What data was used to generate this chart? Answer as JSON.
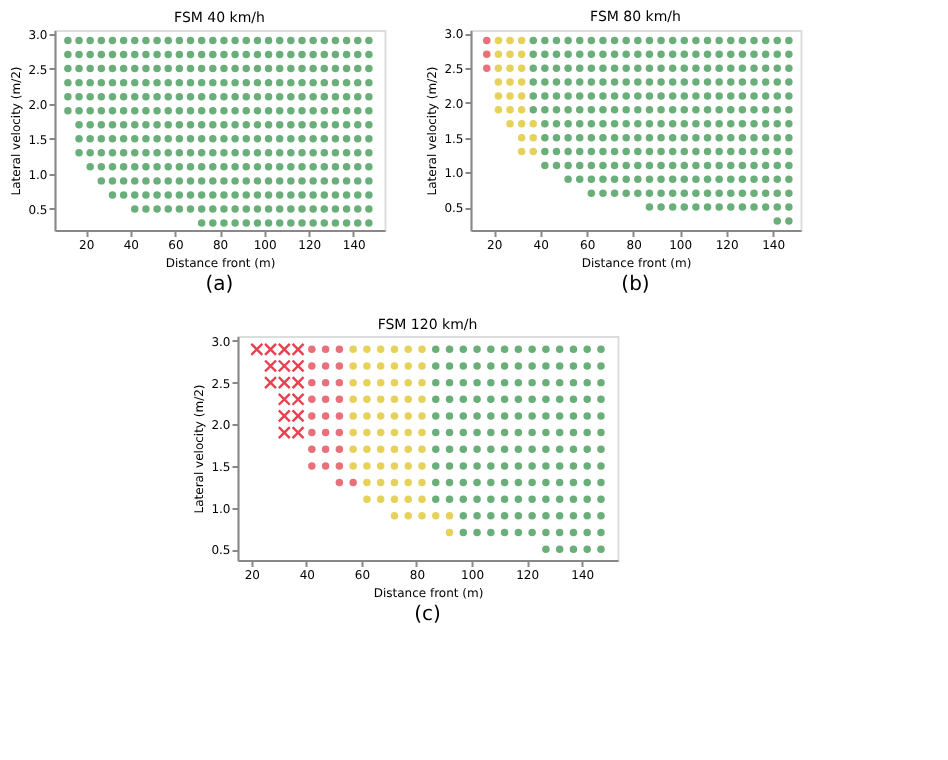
{
  "chart_data": [
    {
      "type": "scatter",
      "title": "FSM 40 km/h",
      "xlabel": "Distance front (m)",
      "ylabel": "Lateral velocity (m/2)",
      "annotations": [
        "(a)"
      ],
      "marker": "circle",
      "grid": false,
      "legend": false,
      "xlim": [
        6,
        154
      ],
      "xticks": [
        20,
        40,
        60,
        80,
        100,
        120,
        140
      ],
      "ylim": [
        0.2,
        3.05
      ],
      "yticks": [
        0.5,
        {
          "value": 1,
          "label": "1.0"
        },
        1.5,
        {
          "value": 2,
          "label": "2.0"
        },
        2.5,
        {
          "value": 3,
          "label": "3.0"
        }
      ],
      "series": [
        {
          "color": "#6aaf7a",
          "x": [
            12,
            17,
            22,
            27,
            32,
            37,
            42,
            47,
            52,
            57,
            62,
            67,
            72,
            77,
            82,
            87,
            92,
            97,
            102,
            107,
            112,
            117,
            122,
            127,
            132,
            137,
            142,
            147
          ],
          "values": [
            2.9,
            2.9,
            2.9,
            2.9,
            2.9,
            2.9,
            2.9,
            2.9,
            2.9,
            2.9,
            2.9,
            2.9,
            2.9,
            2.9,
            2.9,
            2.9,
            2.9,
            2.9,
            2.9,
            2.9,
            2.9,
            2.9,
            2.9,
            2.9,
            2.9,
            2.9,
            2.9,
            2.9
          ]
        },
        {
          "color": "#6aaf7a",
          "x": [
            12,
            17,
            22,
            27,
            32,
            37,
            42,
            47,
            52,
            57,
            62,
            67,
            72,
            77,
            82,
            87,
            92,
            97,
            102,
            107,
            112,
            117,
            122,
            127,
            132,
            137,
            142,
            147
          ],
          "values": [
            2.7,
            2.7,
            2.7,
            2.7,
            2.7,
            2.7,
            2.7,
            2.7,
            2.7,
            2.7,
            2.7,
            2.7,
            2.7,
            2.7,
            2.7,
            2.7,
            2.7,
            2.7,
            2.7,
            2.7,
            2.7,
            2.7,
            2.7,
            2.7,
            2.7,
            2.7,
            2.7,
            2.7
          ]
        },
        {
          "color": "#6aaf7a",
          "x": [
            12,
            17,
            22,
            27,
            32,
            37,
            42,
            47,
            52,
            57,
            62,
            67,
            72,
            77,
            82,
            87,
            92,
            97,
            102,
            107,
            112,
            117,
            122,
            127,
            132,
            137,
            142,
            147
          ],
          "values": [
            2.5,
            2.5,
            2.5,
            2.5,
            2.5,
            2.5,
            2.5,
            2.5,
            2.5,
            2.5,
            2.5,
            2.5,
            2.5,
            2.5,
            2.5,
            2.5,
            2.5,
            2.5,
            2.5,
            2.5,
            2.5,
            2.5,
            2.5,
            2.5,
            2.5,
            2.5,
            2.5,
            2.5
          ]
        },
        {
          "color": "#6aaf7a",
          "x": [
            12,
            17,
            22,
            27,
            32,
            37,
            42,
            47,
            52,
            57,
            62,
            67,
            72,
            77,
            82,
            87,
            92,
            97,
            102,
            107,
            112,
            117,
            122,
            127,
            132,
            137,
            142,
            147
          ],
          "values": [
            2.3,
            2.3,
            2.3,
            2.3,
            2.3,
            2.3,
            2.3,
            2.3,
            2.3,
            2.3,
            2.3,
            2.3,
            2.3,
            2.3,
            2.3,
            2.3,
            2.3,
            2.3,
            2.3,
            2.3,
            2.3,
            2.3,
            2.3,
            2.3,
            2.3,
            2.3,
            2.3,
            2.3
          ]
        },
        {
          "color": "#6aaf7a",
          "x": [
            12,
            17,
            22,
            27,
            32,
            37,
            42,
            47,
            52,
            57,
            62,
            67,
            72,
            77,
            82,
            87,
            92,
            97,
            102,
            107,
            112,
            117,
            122,
            127,
            132,
            137,
            142,
            147
          ],
          "values": [
            2.1,
            2.1,
            2.1,
            2.1,
            2.1,
            2.1,
            2.1,
            2.1,
            2.1,
            2.1,
            2.1,
            2.1,
            2.1,
            2.1,
            2.1,
            2.1,
            2.1,
            2.1,
            2.1,
            2.1,
            2.1,
            2.1,
            2.1,
            2.1,
            2.1,
            2.1,
            2.1,
            2.1
          ]
        },
        {
          "color": "#6aaf7a",
          "x": [
            12,
            17,
            22,
            27,
            32,
            37,
            42,
            47,
            52,
            57,
            62,
            67,
            72,
            77,
            82,
            87,
            92,
            97,
            102,
            107,
            112,
            117,
            122,
            127,
            132,
            137,
            142,
            147
          ],
          "values": [
            1.9,
            1.9,
            1.9,
            1.9,
            1.9,
            1.9,
            1.9,
            1.9,
            1.9,
            1.9,
            1.9,
            1.9,
            1.9,
            1.9,
            1.9,
            1.9,
            1.9,
            1.9,
            1.9,
            1.9,
            1.9,
            1.9,
            1.9,
            1.9,
            1.9,
            1.9,
            1.9,
            1.9
          ]
        },
        {
          "color": "#6aaf7a",
          "x": [
            17,
            22,
            27,
            32,
            37,
            42,
            47,
            52,
            57,
            62,
            67,
            72,
            77,
            82,
            87,
            92,
            97,
            102,
            107,
            112,
            117,
            122,
            127,
            132,
            137,
            142,
            147
          ],
          "values": [
            1.7,
            1.7,
            1.7,
            1.7,
            1.7,
            1.7,
            1.7,
            1.7,
            1.7,
            1.7,
            1.7,
            1.7,
            1.7,
            1.7,
            1.7,
            1.7,
            1.7,
            1.7,
            1.7,
            1.7,
            1.7,
            1.7,
            1.7,
            1.7,
            1.7,
            1.7,
            1.7
          ]
        },
        {
          "color": "#6aaf7a",
          "x": [
            17,
            22,
            27,
            32,
            37,
            42,
            47,
            52,
            57,
            62,
            67,
            72,
            77,
            82,
            87,
            92,
            97,
            102,
            107,
            112,
            117,
            122,
            127,
            132,
            137,
            142,
            147
          ],
          "values": [
            1.5,
            1.5,
            1.5,
            1.5,
            1.5,
            1.5,
            1.5,
            1.5,
            1.5,
            1.5,
            1.5,
            1.5,
            1.5,
            1.5,
            1.5,
            1.5,
            1.5,
            1.5,
            1.5,
            1.5,
            1.5,
            1.5,
            1.5,
            1.5,
            1.5,
            1.5,
            1.5
          ]
        },
        {
          "color": "#6aaf7a",
          "x": [
            17,
            22,
            27,
            32,
            37,
            42,
            47,
            52,
            57,
            62,
            67,
            72,
            77,
            82,
            87,
            92,
            97,
            102,
            107,
            112,
            117,
            122,
            127,
            132,
            137,
            142,
            147
          ],
          "values": [
            1.3,
            1.3,
            1.3,
            1.3,
            1.3,
            1.3,
            1.3,
            1.3,
            1.3,
            1.3,
            1.3,
            1.3,
            1.3,
            1.3,
            1.3,
            1.3,
            1.3,
            1.3,
            1.3,
            1.3,
            1.3,
            1.3,
            1.3,
            1.3,
            1.3,
            1.3,
            1.3
          ]
        },
        {
          "color": "#6aaf7a",
          "x": [
            22,
            27,
            32,
            37,
            42,
            47,
            52,
            57,
            62,
            67,
            72,
            77,
            82,
            87,
            92,
            97,
            102,
            107,
            112,
            117,
            122,
            127,
            132,
            137,
            142,
            147
          ],
          "values": [
            1.1,
            1.1,
            1.1,
            1.1,
            1.1,
            1.1,
            1.1,
            1.1,
            1.1,
            1.1,
            1.1,
            1.1,
            1.1,
            1.1,
            1.1,
            1.1,
            1.1,
            1.1,
            1.1,
            1.1,
            1.1,
            1.1,
            1.1,
            1.1,
            1.1,
            1.1
          ]
        },
        {
          "color": "#6aaf7a",
          "x": [
            27,
            32,
            37,
            42,
            47,
            52,
            57,
            62,
            67,
            72,
            77,
            82,
            87,
            92,
            97,
            102,
            107,
            112,
            117,
            122,
            127,
            132,
            137,
            142,
            147
          ],
          "values": [
            0.9,
            0.9,
            0.9,
            0.9,
            0.9,
            0.9,
            0.9,
            0.9,
            0.9,
            0.9,
            0.9,
            0.9,
            0.9,
            0.9,
            0.9,
            0.9,
            0.9,
            0.9,
            0.9,
            0.9,
            0.9,
            0.9,
            0.9,
            0.9,
            0.9
          ]
        },
        {
          "color": "#6aaf7a",
          "x": [
            32,
            37,
            42,
            47,
            52,
            57,
            62,
            67,
            72,
            77,
            82,
            87,
            92,
            97,
            102,
            107,
            112,
            117,
            122,
            127,
            132,
            137,
            142,
            147
          ],
          "values": [
            0.7,
            0.7,
            0.7,
            0.7,
            0.7,
            0.7,
            0.7,
            0.7,
            0.7,
            0.7,
            0.7,
            0.7,
            0.7,
            0.7,
            0.7,
            0.7,
            0.7,
            0.7,
            0.7,
            0.7,
            0.7,
            0.7,
            0.7,
            0.7
          ]
        },
        {
          "color": "#6aaf7a",
          "x": [
            42,
            47,
            52,
            57,
            62,
            67,
            72,
            77,
            82,
            87,
            92,
            97,
            102,
            107,
            112,
            117,
            122,
            127,
            132,
            137,
            142,
            147
          ],
          "values": [
            0.5,
            0.5,
            0.5,
            0.5,
            0.5,
            0.5,
            0.5,
            0.5,
            0.5,
            0.5,
            0.5,
            0.5,
            0.5,
            0.5,
            0.5,
            0.5,
            0.5,
            0.5,
            0.5,
            0.5,
            0.5,
            0.5
          ]
        },
        {
          "color": "#6aaf7a",
          "x": [
            72,
            77,
            82,
            87,
            92,
            97,
            102,
            107,
            112,
            117,
            122,
            127,
            132,
            137,
            142,
            147
          ],
          "values": [
            0.3,
            0.3,
            0.3,
            0.3,
            0.3,
            0.3,
            0.3,
            0.3,
            0.3,
            0.3,
            0.3,
            0.3,
            0.3,
            0.3,
            0.3,
            0.3
          ]
        }
      ]
    },
    {
      "type": "scatter",
      "title": "FSM 80 km/h",
      "xlabel": "Distance front (m)",
      "ylabel": "Lateral velocity (m/2)",
      "annotations": [
        "(b)"
      ],
      "marker": "circle",
      "grid": false,
      "legend": false,
      "xlim": [
        10,
        152
      ],
      "xticks": [
        20,
        40,
        60,
        80,
        100,
        120,
        140
      ],
      "ylim": [
        0.17,
        3.05
      ],
      "yticks": [
        0.5,
        {
          "value": 1,
          "label": "1.0"
        },
        1.5,
        {
          "value": 2,
          "label": "2.0"
        },
        2.5,
        {
          "value": 3,
          "label": "3.0"
        }
      ],
      "series": [
        {
          "color": "#e8707a",
          "x": [
            17,
            17,
            17
          ],
          "values": [
            2.9,
            2.7,
            2.5
          ]
        },
        {
          "color": "#e6d25a",
          "x": [
            22,
            27,
            32,
            22,
            27,
            32,
            22,
            27,
            32,
            22,
            27,
            32,
            22,
            27,
            32,
            22,
            27,
            32,
            27,
            32,
            37,
            32,
            37,
            32,
            37
          ],
          "values": [
            2.9,
            2.9,
            2.9,
            2.7,
            2.7,
            2.7,
            2.5,
            2.5,
            2.5,
            2.3,
            2.3,
            2.3,
            2.1,
            2.1,
            2.1,
            1.9,
            1.9,
            1.9,
            1.7,
            1.7,
            1.7,
            1.5,
            1.5,
            1.3,
            1.3
          ]
        },
        {
          "color": "#6aaf7a",
          "x": [
            37,
            42,
            47,
            52,
            57,
            62,
            67,
            72,
            77,
            82,
            87,
            92,
            97,
            102,
            107,
            112,
            117,
            122,
            127,
            132,
            137,
            142,
            147
          ],
          "values": [
            2.9,
            2.9,
            2.9,
            2.9,
            2.9,
            2.9,
            2.9,
            2.9,
            2.9,
            2.9,
            2.9,
            2.9,
            2.9,
            2.9,
            2.9,
            2.9,
            2.9,
            2.9,
            2.9,
            2.9,
            2.9,
            2.9,
            2.9
          ]
        },
        {
          "color": "#6aaf7a",
          "x": [
            37,
            42,
            47,
            52,
            57,
            62,
            67,
            72,
            77,
            82,
            87,
            92,
            97,
            102,
            107,
            112,
            117,
            122,
            127,
            132,
            137,
            142,
            147
          ],
          "values": [
            2.7,
            2.7,
            2.7,
            2.7,
            2.7,
            2.7,
            2.7,
            2.7,
            2.7,
            2.7,
            2.7,
            2.7,
            2.7,
            2.7,
            2.7,
            2.7,
            2.7,
            2.7,
            2.7,
            2.7,
            2.7,
            2.7,
            2.7
          ]
        },
        {
          "color": "#6aaf7a",
          "x": [
            37,
            42,
            47,
            52,
            57,
            62,
            67,
            72,
            77,
            82,
            87,
            92,
            97,
            102,
            107,
            112,
            117,
            122,
            127,
            132,
            137,
            142,
            147
          ],
          "values": [
            2.5,
            2.5,
            2.5,
            2.5,
            2.5,
            2.5,
            2.5,
            2.5,
            2.5,
            2.5,
            2.5,
            2.5,
            2.5,
            2.5,
            2.5,
            2.5,
            2.5,
            2.5,
            2.5,
            2.5,
            2.5,
            2.5,
            2.5
          ]
        },
        {
          "color": "#6aaf7a",
          "x": [
            37,
            42,
            47,
            52,
            57,
            62,
            67,
            72,
            77,
            82,
            87,
            92,
            97,
            102,
            107,
            112,
            117,
            122,
            127,
            132,
            137,
            142,
            147
          ],
          "values": [
            2.3,
            2.3,
            2.3,
            2.3,
            2.3,
            2.3,
            2.3,
            2.3,
            2.3,
            2.3,
            2.3,
            2.3,
            2.3,
            2.3,
            2.3,
            2.3,
            2.3,
            2.3,
            2.3,
            2.3,
            2.3,
            2.3,
            2.3
          ]
        },
        {
          "color": "#6aaf7a",
          "x": [
            37,
            42,
            47,
            52,
            57,
            62,
            67,
            72,
            77,
            82,
            87,
            92,
            97,
            102,
            107,
            112,
            117,
            122,
            127,
            132,
            137,
            142,
            147
          ],
          "values": [
            2.1,
            2.1,
            2.1,
            2.1,
            2.1,
            2.1,
            2.1,
            2.1,
            2.1,
            2.1,
            2.1,
            2.1,
            2.1,
            2.1,
            2.1,
            2.1,
            2.1,
            2.1,
            2.1,
            2.1,
            2.1,
            2.1,
            2.1
          ]
        },
        {
          "color": "#6aaf7a",
          "x": [
            37,
            42,
            47,
            52,
            57,
            62,
            67,
            72,
            77,
            82,
            87,
            92,
            97,
            102,
            107,
            112,
            117,
            122,
            127,
            132,
            137,
            142,
            147
          ],
          "values": [
            1.9,
            1.9,
            1.9,
            1.9,
            1.9,
            1.9,
            1.9,
            1.9,
            1.9,
            1.9,
            1.9,
            1.9,
            1.9,
            1.9,
            1.9,
            1.9,
            1.9,
            1.9,
            1.9,
            1.9,
            1.9,
            1.9,
            1.9
          ]
        },
        {
          "color": "#6aaf7a",
          "x": [
            42,
            47,
            52,
            57,
            62,
            67,
            72,
            77,
            82,
            87,
            92,
            97,
            102,
            107,
            112,
            117,
            122,
            127,
            132,
            137,
            142,
            147
          ],
          "values": [
            1.7,
            1.7,
            1.7,
            1.7,
            1.7,
            1.7,
            1.7,
            1.7,
            1.7,
            1.7,
            1.7,
            1.7,
            1.7,
            1.7,
            1.7,
            1.7,
            1.7,
            1.7,
            1.7,
            1.7,
            1.7,
            1.7
          ]
        },
        {
          "color": "#6aaf7a",
          "x": [
            42,
            47,
            52,
            57,
            62,
            67,
            72,
            77,
            82,
            87,
            92,
            97,
            102,
            107,
            112,
            117,
            122,
            127,
            132,
            137,
            142,
            147
          ],
          "values": [
            1.5,
            1.5,
            1.5,
            1.5,
            1.5,
            1.5,
            1.5,
            1.5,
            1.5,
            1.5,
            1.5,
            1.5,
            1.5,
            1.5,
            1.5,
            1.5,
            1.5,
            1.5,
            1.5,
            1.5,
            1.5,
            1.5
          ]
        },
        {
          "color": "#6aaf7a",
          "x": [
            42,
            47,
            52,
            57,
            62,
            67,
            72,
            77,
            82,
            87,
            92,
            97,
            102,
            107,
            112,
            117,
            122,
            127,
            132,
            137,
            142,
            147
          ],
          "values": [
            1.3,
            1.3,
            1.3,
            1.3,
            1.3,
            1.3,
            1.3,
            1.3,
            1.3,
            1.3,
            1.3,
            1.3,
            1.3,
            1.3,
            1.3,
            1.3,
            1.3,
            1.3,
            1.3,
            1.3,
            1.3,
            1.3
          ]
        },
        {
          "color": "#6aaf7a",
          "x": [
            42,
            47,
            52,
            57,
            62,
            67,
            72,
            77,
            82,
            87,
            92,
            97,
            102,
            107,
            112,
            117,
            122,
            127,
            132,
            137,
            142,
            147
          ],
          "values": [
            1.1,
            1.1,
            1.1,
            1.1,
            1.1,
            1.1,
            1.1,
            1.1,
            1.1,
            1.1,
            1.1,
            1.1,
            1.1,
            1.1,
            1.1,
            1.1,
            1.1,
            1.1,
            1.1,
            1.1,
            1.1,
            1.1
          ]
        },
        {
          "color": "#6aaf7a",
          "x": [
            52,
            57,
            62,
            67,
            72,
            77,
            82,
            87,
            92,
            97,
            102,
            107,
            112,
            117,
            122,
            127,
            132,
            137,
            142,
            147
          ],
          "values": [
            0.9,
            0.9,
            0.9,
            0.9,
            0.9,
            0.9,
            0.9,
            0.9,
            0.9,
            0.9,
            0.9,
            0.9,
            0.9,
            0.9,
            0.9,
            0.9,
            0.9,
            0.9,
            0.9,
            0.9
          ]
        },
        {
          "color": "#6aaf7a",
          "x": [
            62,
            67,
            72,
            77,
            82,
            87,
            92,
            97,
            102,
            107,
            112,
            117,
            122,
            127,
            132,
            137,
            142,
            147
          ],
          "values": [
            0.7,
            0.7,
            0.7,
            0.7,
            0.7,
            0.7,
            0.7,
            0.7,
            0.7,
            0.7,
            0.7,
            0.7,
            0.7,
            0.7,
            0.7,
            0.7,
            0.7,
            0.7
          ]
        },
        {
          "color": "#6aaf7a",
          "x": [
            87,
            92,
            97,
            102,
            107,
            112,
            117,
            122,
            127,
            132,
            137,
            142,
            147
          ],
          "values": [
            0.5,
            0.5,
            0.5,
            0.5,
            0.5,
            0.5,
            0.5,
            0.5,
            0.5,
            0.5,
            0.5,
            0.5,
            0.5
          ]
        },
        {
          "color": "#6aaf7a",
          "x": [
            142,
            147
          ],
          "values": [
            0.3,
            0.3
          ]
        }
      ]
    },
    {
      "type": "scatter",
      "title": "FSM 120 km/h",
      "xlabel": "Distance front (m)",
      "ylabel": "Lateral velocity (m/2)",
      "annotations": [
        "(c)"
      ],
      "marker": "circle",
      "grid": false,
      "legend": false,
      "xlim": [
        15,
        153
      ],
      "xticks": [
        20,
        40,
        60,
        80,
        100,
        120,
        140
      ],
      "ylim": [
        0.37,
        3.06
      ],
      "yticks": [
        0.5,
        {
          "value": 1,
          "label": "1.0"
        },
        1.5,
        {
          "value": 2,
          "label": "2.0"
        },
        2.5,
        {
          "value": 3,
          "label": "3.0"
        }
      ],
      "series": [
        {
          "color": "#e8404f",
          "marker": "cross",
          "x": [
            22,
            27,
            32,
            37,
            27,
            32,
            37,
            27,
            32,
            37,
            32,
            37,
            32,
            37,
            32,
            37
          ],
          "values": [
            2.9,
            2.9,
            2.9,
            2.9,
            2.7,
            2.7,
            2.7,
            2.5,
            2.5,
            2.5,
            2.3,
            2.3,
            2.1,
            2.1,
            1.9,
            1.9
          ]
        },
        {
          "color": "#e8707a",
          "x": [
            42,
            47,
            52,
            42,
            47,
            52,
            42,
            47,
            52,
            42,
            47,
            52,
            42,
            47,
            52,
            42,
            47,
            52,
            42,
            47,
            52,
            42,
            47,
            52,
            52,
            57
          ],
          "values": [
            2.9,
            2.9,
            2.9,
            2.7,
            2.7,
            2.7,
            2.5,
            2.5,
            2.5,
            2.3,
            2.3,
            2.3,
            2.1,
            2.1,
            2.1,
            1.9,
            1.9,
            1.9,
            1.7,
            1.7,
            1.7,
            1.5,
            1.5,
            1.5,
            1.3,
            1.3
          ]
        },
        {
          "color": "#e6d25a",
          "x": [
            57,
            62,
            67,
            72,
            77,
            82,
            57,
            62,
            67,
            72,
            77,
            82,
            57,
            62,
            67,
            72,
            77,
            82,
            57,
            62,
            67,
            72,
            77,
            82,
            57,
            62,
            67,
            72,
            77,
            82,
            57,
            62,
            67,
            72,
            77,
            82,
            57,
            62,
            67,
            72,
            77,
            82,
            57,
            62,
            67,
            72,
            77,
            82
          ],
          "values": [
            2.9,
            2.9,
            2.9,
            2.9,
            2.9,
            2.9,
            2.7,
            2.7,
            2.7,
            2.7,
            2.7,
            2.7,
            2.5,
            2.5,
            2.5,
            2.5,
            2.5,
            2.5,
            2.3,
            2.3,
            2.3,
            2.3,
            2.3,
            2.3,
            2.1,
            2.1,
            2.1,
            2.1,
            2.1,
            2.1,
            1.9,
            1.9,
            1.9,
            1.9,
            1.9,
            1.9,
            1.7,
            1.7,
            1.7,
            1.7,
            1.7,
            1.7,
            1.5,
            1.5,
            1.5,
            1.5,
            1.5,
            1.5
          ]
        },
        {
          "color": "#e6d25a",
          "x": [
            62,
            67,
            72,
            77,
            82,
            62,
            67,
            72,
            77,
            82,
            72,
            77,
            82,
            87,
            92,
            92
          ],
          "values": [
            1.3,
            1.3,
            1.3,
            1.3,
            1.3,
            1.1,
            1.1,
            1.1,
            1.1,
            1.1,
            0.9,
            0.9,
            0.9,
            0.9,
            0.9,
            0.7
          ]
        },
        {
          "color": "#6aaf7a",
          "x": [
            87,
            92,
            97,
            102,
            107,
            112,
            117,
            122,
            127,
            132,
            137,
            142,
            147
          ],
          "values": [
            2.9,
            2.9,
            2.9,
            2.9,
            2.9,
            2.9,
            2.9,
            2.9,
            2.9,
            2.9,
            2.9,
            2.9,
            2.9
          ]
        },
        {
          "color": "#6aaf7a",
          "x": [
            87,
            92,
            97,
            102,
            107,
            112,
            117,
            122,
            127,
            132,
            137,
            142,
            147
          ],
          "values": [
            2.7,
            2.7,
            2.7,
            2.7,
            2.7,
            2.7,
            2.7,
            2.7,
            2.7,
            2.7,
            2.7,
            2.7,
            2.7
          ]
        },
        {
          "color": "#6aaf7a",
          "x": [
            87,
            92,
            97,
            102,
            107,
            112,
            117,
            122,
            127,
            132,
            137,
            142,
            147
          ],
          "values": [
            2.5,
            2.5,
            2.5,
            2.5,
            2.5,
            2.5,
            2.5,
            2.5,
            2.5,
            2.5,
            2.5,
            2.5,
            2.5
          ]
        },
        {
          "color": "#6aaf7a",
          "x": [
            87,
            92,
            97,
            102,
            107,
            112,
            117,
            122,
            127,
            132,
            137,
            142,
            147
          ],
          "values": [
            2.3,
            2.3,
            2.3,
            2.3,
            2.3,
            2.3,
            2.3,
            2.3,
            2.3,
            2.3,
            2.3,
            2.3,
            2.3
          ]
        },
        {
          "color": "#6aaf7a",
          "x": [
            87,
            92,
            97,
            102,
            107,
            112,
            117,
            122,
            127,
            132,
            137,
            142,
            147
          ],
          "values": [
            2.1,
            2.1,
            2.1,
            2.1,
            2.1,
            2.1,
            2.1,
            2.1,
            2.1,
            2.1,
            2.1,
            2.1,
            2.1
          ]
        },
        {
          "color": "#6aaf7a",
          "x": [
            87,
            92,
            97,
            102,
            107,
            112,
            117,
            122,
            127,
            132,
            137,
            142,
            147
          ],
          "values": [
            1.9,
            1.9,
            1.9,
            1.9,
            1.9,
            1.9,
            1.9,
            1.9,
            1.9,
            1.9,
            1.9,
            1.9,
            1.9
          ]
        },
        {
          "color": "#6aaf7a",
          "x": [
            87,
            92,
            97,
            102,
            107,
            112,
            117,
            122,
            127,
            132,
            137,
            142,
            147
          ],
          "values": [
            1.7,
            1.7,
            1.7,
            1.7,
            1.7,
            1.7,
            1.7,
            1.7,
            1.7,
            1.7,
            1.7,
            1.7,
            1.7
          ]
        },
        {
          "color": "#6aaf7a",
          "x": [
            87,
            92,
            97,
            102,
            107,
            112,
            117,
            122,
            127,
            132,
            137,
            142,
            147
          ],
          "values": [
            1.5,
            1.5,
            1.5,
            1.5,
            1.5,
            1.5,
            1.5,
            1.5,
            1.5,
            1.5,
            1.5,
            1.5,
            1.5
          ]
        },
        {
          "color": "#6aaf7a",
          "x": [
            87,
            92,
            97,
            102,
            107,
            112,
            117,
            122,
            127,
            132,
            137,
            142,
            147
          ],
          "values": [
            1.3,
            1.3,
            1.3,
            1.3,
            1.3,
            1.3,
            1.3,
            1.3,
            1.3,
            1.3,
            1.3,
            1.3,
            1.3
          ]
        },
        {
          "color": "#6aaf7a",
          "x": [
            87,
            92,
            97,
            102,
            107,
            112,
            117,
            122,
            127,
            132,
            137,
            142,
            147
          ],
          "values": [
            1.1,
            1.1,
            1.1,
            1.1,
            1.1,
            1.1,
            1.1,
            1.1,
            1.1,
            1.1,
            1.1,
            1.1,
            1.1
          ]
        },
        {
          "color": "#6aaf7a",
          "x": [
            97,
            102,
            107,
            112,
            117,
            122,
            127,
            132,
            137,
            142,
            147
          ],
          "values": [
            0.9,
            0.9,
            0.9,
            0.9,
            0.9,
            0.9,
            0.9,
            0.9,
            0.9,
            0.9,
            0.9
          ]
        },
        {
          "color": "#6aaf7a",
          "x": [
            97,
            102,
            107,
            112,
            117,
            122,
            127,
            132,
            137,
            142,
            147
          ],
          "values": [
            0.7,
            0.7,
            0.7,
            0.7,
            0.7,
            0.7,
            0.7,
            0.7,
            0.7,
            0.7,
            0.7
          ]
        },
        {
          "color": "#6aaf7a",
          "x": [
            127,
            132,
            137,
            142,
            147
          ],
          "values": [
            0.5,
            0.5,
            0.5,
            0.5,
            0.5
          ]
        }
      ]
    }
  ]
}
